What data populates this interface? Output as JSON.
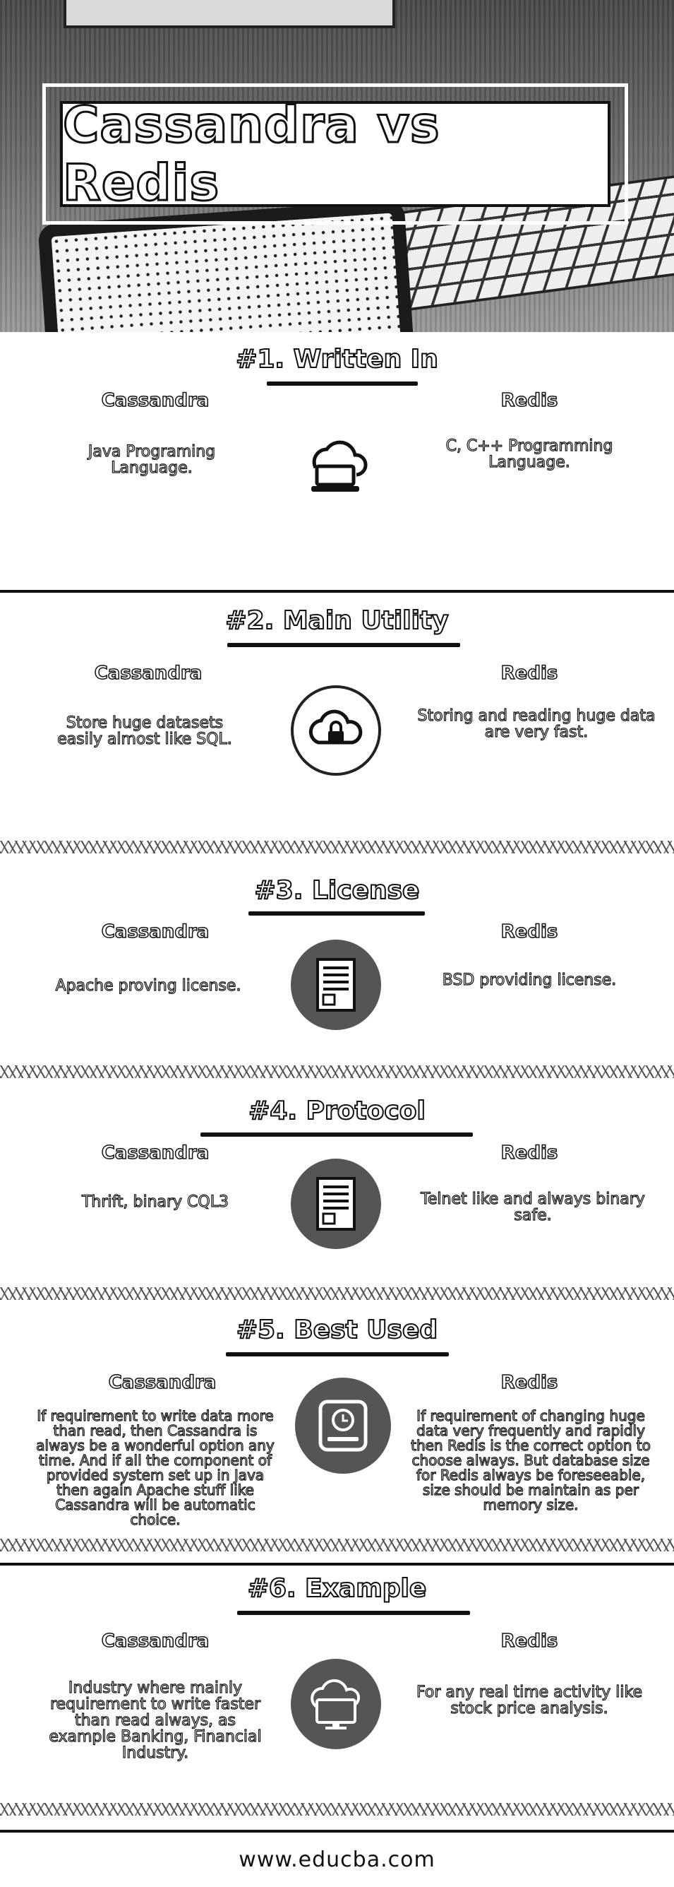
{
  "header": {
    "title": "Cassandra vs Redis"
  },
  "sections": [
    {
      "title": "#1. Written In",
      "left_head": "Cassandra",
      "right_head": "Redis",
      "left_text": "Java Programing Language.",
      "right_text": "C, C++ Programming Language.",
      "icon": "cloud-laptop-icon"
    },
    {
      "title": "#2. Main Utility",
      "left_head": "Cassandra",
      "right_head": "Redis",
      "left_text": "Store huge datasets easily almost like SQL.",
      "right_text": "Storing and reading huge data are very fast.",
      "icon": "cloud-lock-icon"
    },
    {
      "title": "#3. License",
      "left_head": "Cassandra",
      "right_head": "Redis",
      "left_text": "Apache proving license.",
      "right_text": "BSD providing license.",
      "icon": "document-icon"
    },
    {
      "title": "#4. Protocol",
      "left_head": "Cassandra",
      "right_head": "Redis",
      "left_text": "Thrift, binary CQL3",
      "right_text": "Telnet like and always binary safe.",
      "icon": "document-icon"
    },
    {
      "title": "#5. Best Used",
      "left_head": "Cassandra",
      "right_head": "Redis",
      "left_text": "If requirement to write data more than read, then Cassandra is always be a wonderful option any time. And if all the component of provided system set up in Java then again Apache stuff like Cassandra will be automatic choice.",
      "right_text": "If requirement of changing huge data very frequently and rapidly then Redis is the correct option to choose always. But database size for Redis always be foreseeable, size should be maintain as per memory size.",
      "icon": "hard-drive-clock-icon"
    },
    {
      "title": "#6. Example",
      "left_head": "Cassandra",
      "right_head": "Redis",
      "left_text": "Industry where mainly requirement to write faster than read always, as example Banking, Financial Industry.",
      "right_text": "For any real time activity like stock price analysis.",
      "icon": "cloud-monitor-icon"
    }
  ],
  "footer": {
    "url": "www.educba.com"
  }
}
